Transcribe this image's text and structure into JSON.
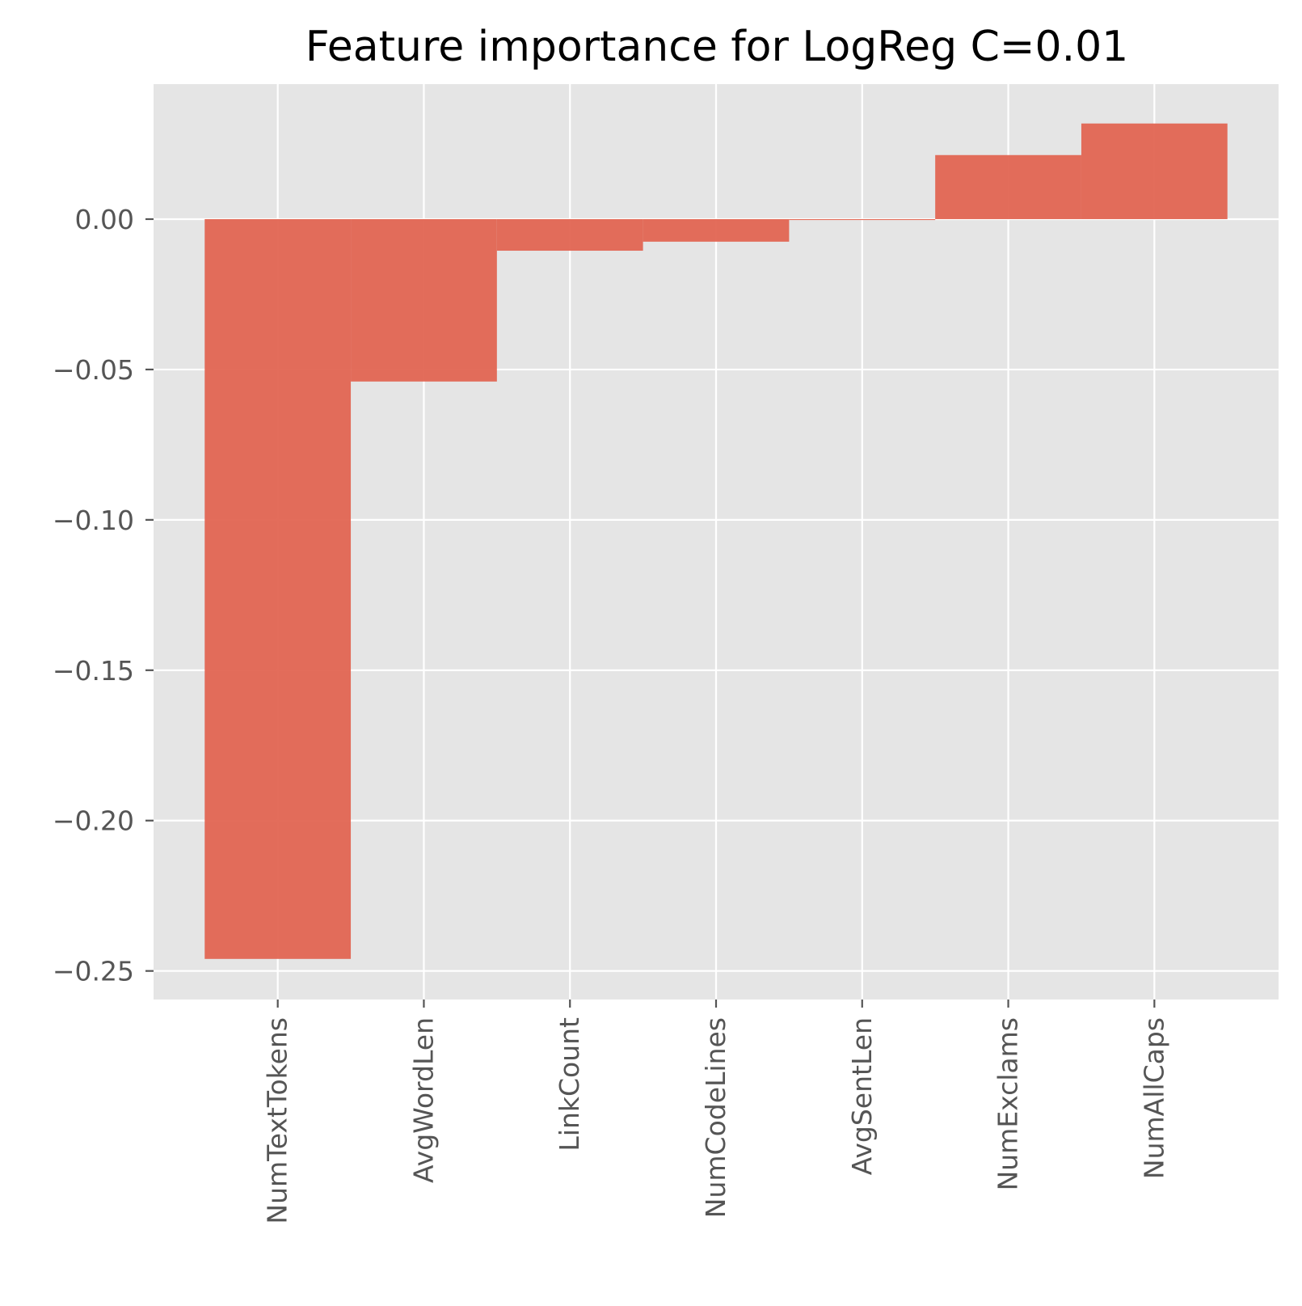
{
  "chart_data": {
    "type": "bar",
    "title": "Feature importance for LogReg C=0.01",
    "xlabel": "",
    "ylabel": "",
    "categories": [
      "NumTextTokens",
      "AvgWordLen",
      "LinkCount",
      "NumCodeLines",
      "AvgSentLen",
      "NumExclams",
      "NumAllCaps"
    ],
    "values": [
      -0.246,
      -0.054,
      -0.0105,
      -0.0075,
      -0.0003,
      0.0213,
      0.0318
    ],
    "yticks": [
      0.0,
      -0.05,
      -0.1,
      -0.15,
      -0.2,
      -0.25
    ],
    "ytick_labels": [
      "0.00",
      "−0.05",
      "−0.10",
      "−0.15",
      "−0.20",
      "−0.25"
    ],
    "ylim": [
      -0.2595,
      0.0449
    ],
    "xlim": [
      -0.85,
      6.85
    ],
    "bar_width": 1.0,
    "grid": true,
    "legend": "none",
    "colors": {
      "bar": "#e26552",
      "plot_background": "#e5e5e5",
      "grid": "#ffffff",
      "tick_label": "#555555",
      "title": "#000000"
    }
  }
}
